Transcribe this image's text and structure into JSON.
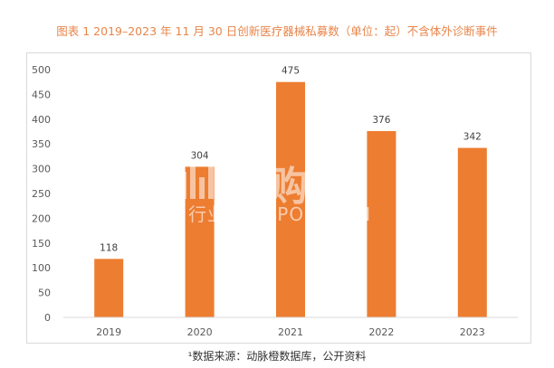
{
  "caption": "图表 1 2019–2023 年 11 月 30 日创新医疗器械私募数（单位：起）不含体外诊断事件",
  "source": "¹数据来源：动脉橙数据库，公开资料",
  "watermark": {
    "name": "并购家",
    "sub": "行业报告 IPOIPO.CN"
  },
  "colors": {
    "bar": "#ed7d31",
    "grid": "#d9d9d9",
    "axis_text": "#595959",
    "caption": "#e8854a"
  },
  "chart_data": {
    "type": "bar",
    "categories": [
      "2019",
      "2020",
      "2021",
      "2022",
      "2023"
    ],
    "values": [
      118,
      304,
      475,
      376,
      342
    ],
    "ylim": [
      0,
      500
    ],
    "yticks": [
      "0",
      "50",
      "100",
      "150",
      "200",
      "250",
      "300",
      "350",
      "400",
      "450",
      "500"
    ],
    "grid": false,
    "data_labels": true
  }
}
